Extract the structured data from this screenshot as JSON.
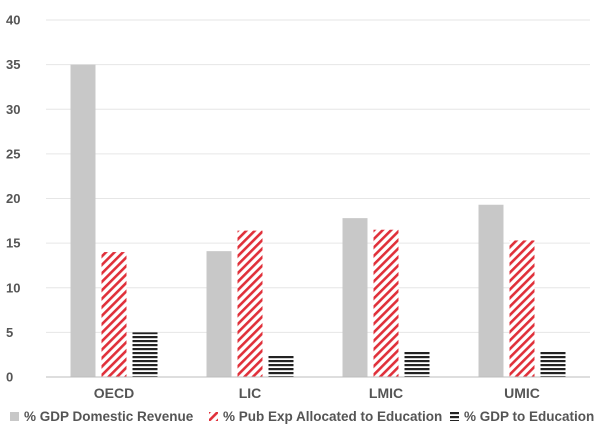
{
  "chart_data": {
    "type": "bar",
    "title": "",
    "xlabel": "",
    "ylabel": "",
    "categories": [
      "OECD",
      "LIC",
      "LMIC",
      "UMIC"
    ],
    "ylim": [
      0,
      40
    ],
    "yticks": [
      0,
      5,
      10,
      15,
      20,
      25,
      30,
      35,
      40
    ],
    "grid": true,
    "legend_position": "bottom",
    "series": [
      {
        "name": "% GDP Domestic Revenue",
        "values": [
          35,
          14.1,
          17.8,
          19.3
        ],
        "color": "#c8c8c8",
        "pattern": "solid"
      },
      {
        "name": "% Pub Exp Allocated to Education",
        "values": [
          14,
          16.4,
          16.5,
          15.3
        ],
        "color": "#e0303a",
        "pattern": "diagonal-stripes"
      },
      {
        "name": "% GDP to Education",
        "values": [
          5,
          2.4,
          2.9,
          2.9
        ],
        "color": "#222222",
        "pattern": "horizontal-stripes"
      }
    ]
  }
}
